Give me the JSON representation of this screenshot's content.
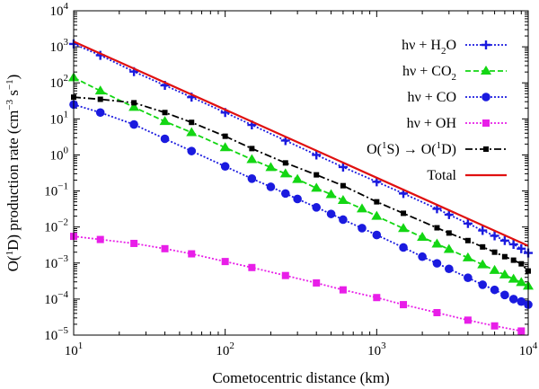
{
  "chart_data": {
    "type": "line",
    "xscale": "log",
    "yscale": "log",
    "xlim": [
      10,
      10000
    ],
    "ylim": [
      1e-05,
      10000
    ],
    "xlabel": "Cometocentric distance (km)",
    "ylabel": {
      "prefix": "O(",
      "sup1": "1",
      "mid": "D) production rate (cm",
      "sup2": "−3",
      "mid2": " s",
      "sup3": "−1",
      "suffix": ")"
    },
    "x_ticks": [
      {
        "base": "10",
        "exp": "1",
        "value": 10
      },
      {
        "base": "10",
        "exp": "2",
        "value": 100
      },
      {
        "base": "10",
        "exp": "3",
        "value": 1000
      },
      {
        "base": "10",
        "exp": "4",
        "value": 10000
      }
    ],
    "y_ticks": [
      {
        "base": "10",
        "exp": "−5",
        "value": 1e-05
      },
      {
        "base": "10",
        "exp": "−4",
        "value": 0.0001
      },
      {
        "base": "10",
        "exp": "−3",
        "value": 0.001
      },
      {
        "base": "10",
        "exp": "−2",
        "value": 0.01
      },
      {
        "base": "10",
        "exp": "−1",
        "value": 0.1
      },
      {
        "base": "10",
        "exp": "0",
        "value": 1
      },
      {
        "base": "10",
        "exp": "1",
        "value": 10
      },
      {
        "base": "10",
        "exp": "2",
        "value": 100
      },
      {
        "base": "10",
        "exp": "3",
        "value": 1000
      },
      {
        "base": "10",
        "exp": "4",
        "value": 10000
      }
    ],
    "legend_position": "top-right",
    "series": [
      {
        "key": "h2o",
        "name": "hν + H2O",
        "legend": {
          "text": "hν + H",
          "sub": "2",
          "tail": "O"
        },
        "color": "#1a1adf",
        "marker": "plus",
        "dash": "2,2",
        "points": [
          [
            10,
            1200
          ],
          [
            15,
            580
          ],
          [
            25,
            205
          ],
          [
            40,
            85
          ],
          [
            60,
            40
          ],
          [
            100,
            15
          ],
          [
            150,
            6.8
          ],
          [
            250,
            2.5
          ],
          [
            400,
            1.0
          ],
          [
            600,
            0.46
          ],
          [
            1000,
            0.18
          ],
          [
            1500,
            0.085
          ],
          [
            2500,
            0.032
          ],
          [
            3000,
            0.022
          ],
          [
            4000,
            0.0125
          ],
          [
            5000,
            0.008
          ],
          [
            6000,
            0.0057
          ],
          [
            7000,
            0.0042
          ],
          [
            8000,
            0.0033
          ],
          [
            9000,
            0.0025
          ],
          [
            10000,
            0.0019
          ]
        ]
      },
      {
        "key": "co2",
        "name": "hν + CO2",
        "legend": {
          "text": "hν + CO",
          "sub": "2",
          "tail": ""
        },
        "color": "#13d613",
        "marker": "triangle",
        "dash": "6,3",
        "points": [
          [
            10,
            140
          ],
          [
            15,
            60
          ],
          [
            25,
            21
          ],
          [
            40,
            8.5
          ],
          [
            60,
            4.2
          ],
          [
            100,
            1.6
          ],
          [
            150,
            0.75
          ],
          [
            200,
            0.45
          ],
          [
            250,
            0.3
          ],
          [
            300,
            0.21
          ],
          [
            400,
            0.12
          ],
          [
            500,
            0.08
          ],
          [
            600,
            0.055
          ],
          [
            800,
            0.032
          ],
          [
            1000,
            0.02
          ],
          [
            1500,
            0.0091
          ],
          [
            2000,
            0.0052
          ],
          [
            2500,
            0.0034
          ],
          [
            3000,
            0.0024
          ],
          [
            4000,
            0.0014
          ],
          [
            5000,
            0.0009
          ],
          [
            6000,
            0.00063
          ],
          [
            7000,
            0.00047
          ],
          [
            8000,
            0.00036
          ],
          [
            9000,
            0.00029
          ],
          [
            10000,
            0.00023
          ]
        ]
      },
      {
        "key": "co",
        "name": "hν + CO",
        "legend": {
          "text": "hν + CO",
          "sub": "",
          "tail": ""
        },
        "color": "#1a1adf",
        "marker": "circle",
        "dash": "2,2",
        "points": [
          [
            10,
            25
          ],
          [
            15,
            15
          ],
          [
            25,
            7
          ],
          [
            40,
            2.8
          ],
          [
            60,
            1.28
          ],
          [
            100,
            0.48
          ],
          [
            150,
            0.22
          ],
          [
            200,
            0.13
          ],
          [
            250,
            0.085
          ],
          [
            300,
            0.06
          ],
          [
            400,
            0.035
          ],
          [
            500,
            0.023
          ],
          [
            600,
            0.016
          ],
          [
            800,
            0.0093
          ],
          [
            1000,
            0.006
          ],
          [
            1500,
            0.0027
          ],
          [
            2000,
            0.0015
          ],
          [
            2500,
            0.00098
          ],
          [
            3000,
            0.00069
          ],
          [
            4000,
            0.00039
          ],
          [
            5000,
            0.00025
          ],
          [
            6000,
            0.00018
          ],
          [
            7000,
            0.00013
          ],
          [
            8000,
            0.0001
          ],
          [
            9000,
            8.5e-05
          ],
          [
            10000,
            7e-05
          ]
        ]
      },
      {
        "key": "oh",
        "name": "hν + OH",
        "legend": {
          "text": "hν + OH",
          "sub": "",
          "tail": ""
        },
        "color": "#e81ee8",
        "marker": "square",
        "dash": "2,2",
        "points": [
          [
            10,
            0.0055
          ],
          [
            15,
            0.0045
          ],
          [
            25,
            0.0035
          ],
          [
            40,
            0.0025
          ],
          [
            60,
            0.0018
          ],
          [
            100,
            0.0011
          ],
          [
            150,
            0.00075
          ],
          [
            250,
            0.00045
          ],
          [
            400,
            0.00028
          ],
          [
            600,
            0.00018
          ],
          [
            1000,
            0.00011
          ],
          [
            1500,
            7e-05
          ],
          [
            2500,
            4.2e-05
          ],
          [
            4000,
            2.6e-05
          ],
          [
            6000,
            1.8e-05
          ],
          [
            9000,
            1.3e-05
          ]
        ]
      },
      {
        "key": "o1s",
        "name": "O(1S) → O(1D)",
        "legend": {
          "text": "O(",
          "sup": "1",
          "mid": "S) → O(",
          "sup2": "1",
          "tail": "D)"
        },
        "color": "#000000",
        "marker": "smallsquare",
        "dash": "8,3,2,3",
        "points": [
          [
            10,
            40
          ],
          [
            15,
            35
          ],
          [
            25,
            28
          ],
          [
            40,
            15
          ],
          [
            60,
            8
          ],
          [
            100,
            3.3
          ],
          [
            150,
            1.5
          ],
          [
            250,
            0.6
          ],
          [
            400,
            0.28
          ],
          [
            600,
            0.14
          ],
          [
            1000,
            0.05
          ],
          [
            1500,
            0.024
          ],
          [
            2500,
            0.0095
          ],
          [
            3000,
            0.0068
          ],
          [
            4000,
            0.0042
          ],
          [
            5000,
            0.0028
          ],
          [
            6000,
            0.002
          ],
          [
            7000,
            0.0015
          ],
          [
            8000,
            0.0012
          ],
          [
            9000,
            0.00095
          ],
          [
            10000,
            0.0006
          ]
        ]
      },
      {
        "key": "total",
        "name": "Total",
        "legend": {
          "text": "Total",
          "sub": "",
          "tail": ""
        },
        "color": "#e01010",
        "marker": "none",
        "dash": "",
        "points": [
          [
            10,
            1400
          ],
          [
            10000,
            0.003
          ]
        ]
      }
    ]
  }
}
